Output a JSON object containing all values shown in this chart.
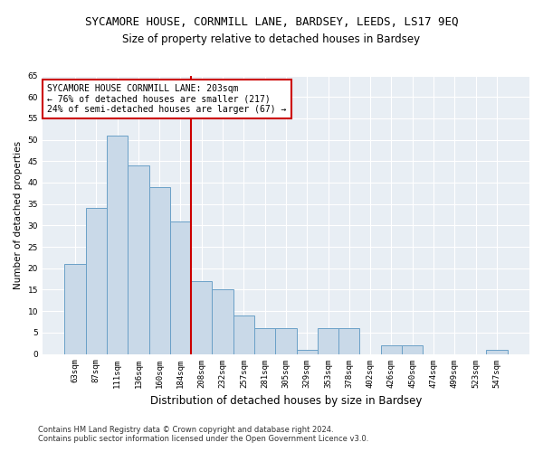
{
  "title": "SYCAMORE HOUSE, CORNMILL LANE, BARDSEY, LEEDS, LS17 9EQ",
  "subtitle": "Size of property relative to detached houses in Bardsey",
  "xlabel": "Distribution of detached houses by size in Bardsey",
  "ylabel": "Number of detached properties",
  "categories": [
    "63sqm",
    "87sqm",
    "111sqm",
    "136sqm",
    "160sqm",
    "184sqm",
    "208sqm",
    "232sqm",
    "257sqm",
    "281sqm",
    "305sqm",
    "329sqm",
    "353sqm",
    "378sqm",
    "402sqm",
    "426sqm",
    "450sqm",
    "474sqm",
    "499sqm",
    "523sqm",
    "547sqm"
  ],
  "values": [
    21,
    34,
    51,
    44,
    39,
    31,
    17,
    15,
    9,
    6,
    6,
    1,
    6,
    6,
    0,
    2,
    2,
    0,
    0,
    0,
    1
  ],
  "bar_color": "#c9d9e8",
  "bar_edge_color": "#6aa0c7",
  "highlight_line_color": "#cc0000",
  "annotation_text": "SYCAMORE HOUSE CORNMILL LANE: 203sqm\n← 76% of detached houses are smaller (217)\n24% of semi-detached houses are larger (67) →",
  "annotation_box_color": "#ffffff",
  "annotation_box_edge_color": "#cc0000",
  "ylim": [
    0,
    65
  ],
  "yticks": [
    0,
    5,
    10,
    15,
    20,
    25,
    30,
    35,
    40,
    45,
    50,
    55,
    60,
    65
  ],
  "background_color": "#e8eef4",
  "footer_line1": "Contains HM Land Registry data © Crown copyright and database right 2024.",
  "footer_line2": "Contains public sector information licensed under the Open Government Licence v3.0.",
  "title_fontsize": 9,
  "subtitle_fontsize": 8.5,
  "xlabel_fontsize": 8.5,
  "ylabel_fontsize": 7.5,
  "tick_fontsize": 6.5,
  "annotation_fontsize": 7,
  "footer_fontsize": 6
}
